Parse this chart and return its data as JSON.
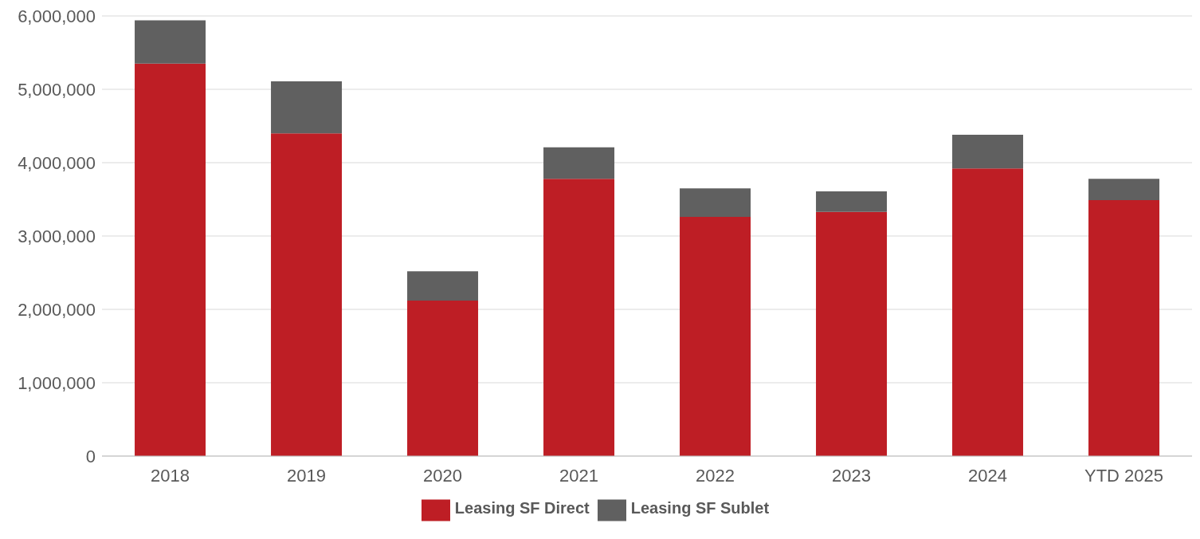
{
  "chart_data": {
    "type": "bar",
    "stacked": true,
    "categories": [
      "2018",
      "2019",
      "2020",
      "2021",
      "2022",
      "2023",
      "2024",
      "YTD 2025"
    ],
    "series": [
      {
        "name": "Leasing SF Direct",
        "color": "#be1e25",
        "values": [
          5350000,
          4400000,
          2120000,
          3780000,
          3260000,
          3330000,
          3920000,
          3490000
        ]
      },
      {
        "name": "Leasing SF Sublet",
        "color": "#606060",
        "values": [
          590000,
          710000,
          400000,
          430000,
          390000,
          280000,
          460000,
          290000
        ]
      }
    ],
    "ylim": [
      0,
      6000000
    ],
    "yticks": [
      0,
      {
        "value": 1000000,
        "label": "1,000,000"
      },
      {
        "value": 2000000,
        "label": "2,000,000"
      },
      {
        "value": 3000000,
        "label": "3,000,000"
      },
      {
        "value": 4000000,
        "label": "4,000,000"
      },
      {
        "value": 5000000,
        "label": "5,000,000"
      },
      {
        "value": 6000000,
        "label": "6,000,000"
      }
    ],
    "grid": "y",
    "legend": "bottom"
  }
}
